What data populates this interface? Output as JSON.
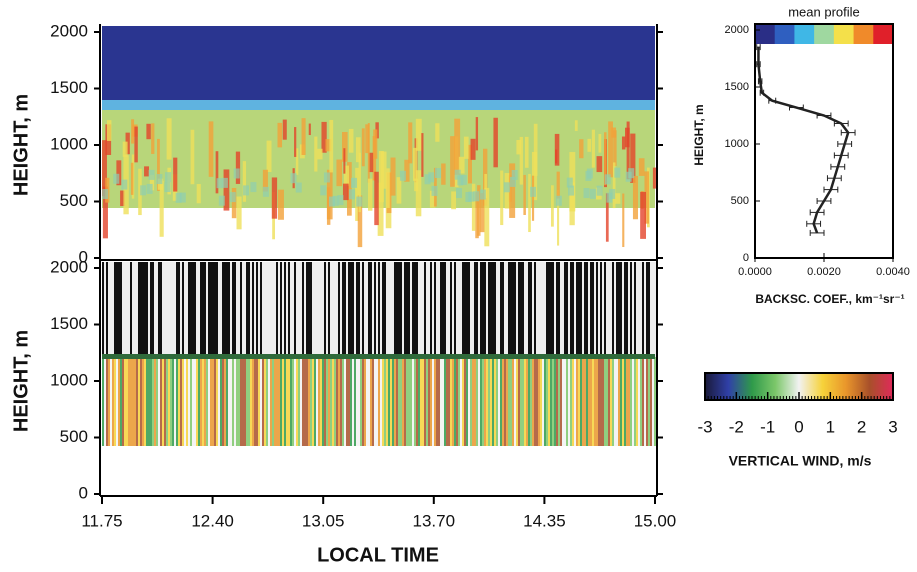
{
  "chart_data": [
    {
      "type": "heatmap",
      "ylabel": "HEIGHT, m",
      "ylim": [
        0,
        2000
      ],
      "yticks": [
        0,
        500,
        1000,
        1500,
        2000
      ],
      "xlim": [
        11.75,
        15.0
      ]
    },
    {
      "type": "heatmap",
      "ylabel": "HEIGHT, m",
      "ylim": [
        0,
        2000
      ],
      "yticks": [
        0,
        500,
        1000,
        1500,
        2000
      ],
      "xlabel": "LOCAL TIME",
      "xlim": [
        11.75,
        15.0
      ],
      "xticks": [
        {
          "value": 11.75,
          "label": "11.75"
        },
        {
          "value": 12.4,
          "label": "12.40"
        },
        {
          "value": 13.05,
          "label": "13.05"
        },
        {
          "value": 13.7,
          "label": "13.70"
        },
        {
          "value": 14.35,
          "label": "14.35"
        },
        {
          "value": 15.0,
          "label": "15.00"
        }
      ]
    },
    {
      "type": "line",
      "title": "mean profile",
      "ylabel": "HEIGHT, m",
      "xlabel": "BACKSC. COEF., km⁻¹sr⁻¹",
      "xlim": [
        0,
        0.004
      ],
      "xticks": [
        {
          "value": 0,
          "label": "0.0000"
        },
        {
          "value": 0.002,
          "label": "0.0020"
        },
        {
          "value": 0.004,
          "label": "0.0040"
        }
      ],
      "ylim": [
        0,
        2000
      ],
      "yticks": [
        0,
        500,
        1000,
        1500,
        2000
      ],
      "colors": [
        "#2a2e86",
        "#2f5fc0",
        "#3fb7e6",
        "#9fd8a0",
        "#f4e04a",
        "#f08a2a",
        "#e0202a"
      ],
      "series": [
        {
          "color": "#222222",
          "x": [
            0.0001,
            0.0001,
            0.00015,
            0.0002,
            0.0005,
            0.0012,
            0.002,
            0.0025,
            0.0027,
            0.0026,
            0.0025,
            0.0024,
            0.0023,
            0.0022,
            0.002,
            0.0018,
            0.0017,
            0.0018
          ],
          "values": [
            1850,
            1700,
            1550,
            1450,
            1380,
            1320,
            1250,
            1180,
            1100,
            1000,
            900,
            800,
            700,
            600,
            500,
            400,
            300,
            220
          ],
          "errors": [
            5e-05,
            5e-05,
            5e-05,
            5e-05,
            0.0001,
            0.0002,
            0.0002,
            0.0002,
            0.0002,
            0.0002,
            0.0002,
            0.0002,
            0.0002,
            0.0002,
            0.0002,
            0.0002,
            0.0002,
            0.0002
          ]
        }
      ]
    },
    {
      "type": "colorbar",
      "xlabel": "VERTICAL WIND, m/s",
      "xlim": [
        -3,
        3
      ],
      "xticks": [
        -3,
        -2,
        -1,
        0,
        1,
        2,
        3
      ],
      "colors": [
        "#1a1a3a",
        "#3040a8",
        "#2f9a4a",
        "#7cc76a",
        "#f2f2f2",
        "#f6d23a",
        "#e9962b",
        "#a8502a",
        "#e02a5a"
      ]
    }
  ]
}
